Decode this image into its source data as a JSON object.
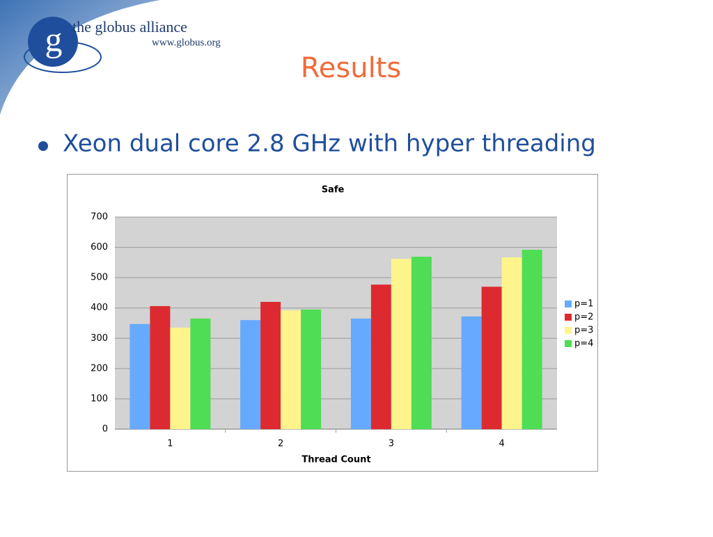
{
  "slide": {
    "logo_letter": "g",
    "logo_name": "the globus alliance",
    "logo_url": "www.globus.org",
    "title": "Results",
    "bullet": "Xeon dual core 2.8 GHz with hyper threading"
  },
  "chart_data": {
    "type": "bar",
    "title": "Safe",
    "x_label": "Thread Count",
    "categories": [
      "1",
      "2",
      "3",
      "4"
    ],
    "series": [
      {
        "name": "p=1",
        "color": "#66aaff",
        "values": [
          347,
          360,
          365,
          372
        ]
      },
      {
        "name": "p=2",
        "color": "#dd2a30",
        "values": [
          406,
          420,
          477,
          470
        ]
      },
      {
        "name": "p=3",
        "color": "#fff48c",
        "values": [
          335,
          392,
          562,
          567
        ]
      },
      {
        "name": "p=4",
        "color": "#4fdd55",
        "values": [
          365,
          395,
          569,
          592
        ]
      }
    ],
    "ylim": [
      0,
      700
    ],
    "yticks": [
      0,
      100,
      200,
      300,
      400,
      500,
      600,
      700
    ],
    "grid": true,
    "legend": "right"
  }
}
